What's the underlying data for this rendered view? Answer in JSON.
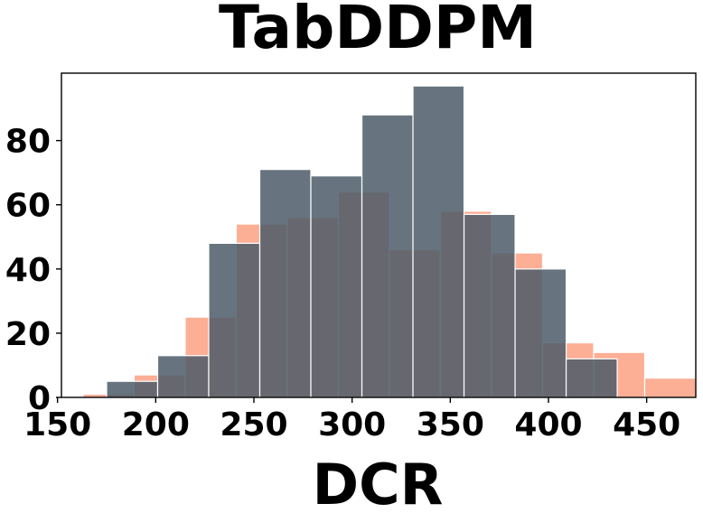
{
  "chart_data": {
    "type": "bar",
    "title": "TabDDPM",
    "xlabel": "DCR",
    "ylabel": "",
    "xlim": [
      152,
      475
    ],
    "ylim": [
      0,
      101
    ],
    "xticks": [
      150,
      200,
      250,
      300,
      350,
      400,
      450
    ],
    "yticks": [
      0,
      20,
      40,
      60,
      80
    ],
    "grid": false,
    "legend": "none",
    "series": [
      {
        "color": "#fca68a",
        "bins": [
          {
            "x0": 163,
            "x1": 189,
            "value": 1
          },
          {
            "x0": 189,
            "x1": 215,
            "value": 7
          },
          {
            "x0": 215,
            "x1": 241,
            "value": 25
          },
          {
            "x0": 241,
            "x1": 267,
            "value": 54
          },
          {
            "x0": 267,
            "x1": 293,
            "value": 56
          },
          {
            "x0": 293,
            "x1": 319,
            "value": 64
          },
          {
            "x0": 319,
            "x1": 345,
            "value": 46
          },
          {
            "x0": 345,
            "x1": 371,
            "value": 58
          },
          {
            "x0": 371,
            "x1": 397,
            "value": 45
          },
          {
            "x0": 397,
            "x1": 423,
            "value": 17
          },
          {
            "x0": 423,
            "x1": 449,
            "value": 14
          },
          {
            "x0": 449,
            "x1": 475,
            "value": 6
          }
        ]
      },
      {
        "color": "#4c5c69",
        "bins": [
          {
            "x0": 175,
            "x1": 201,
            "value": 5
          },
          {
            "x0": 201,
            "x1": 227,
            "value": 13
          },
          {
            "x0": 227,
            "x1": 253,
            "value": 48
          },
          {
            "x0": 253,
            "x1": 279,
            "value": 71
          },
          {
            "x0": 279,
            "x1": 305,
            "value": 69
          },
          {
            "x0": 305,
            "x1": 331,
            "value": 88
          },
          {
            "x0": 331,
            "x1": 357,
            "value": 97
          },
          {
            "x0": 357,
            "x1": 383,
            "value": 57
          },
          {
            "x0": 383,
            "x1": 409,
            "value": 40
          },
          {
            "x0": 409,
            "x1": 435,
            "value": 12
          }
        ]
      }
    ]
  }
}
